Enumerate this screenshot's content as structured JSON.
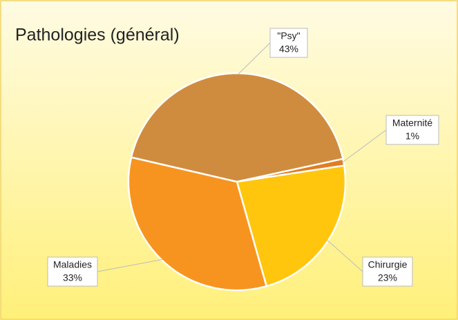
{
  "chart_data": {
    "type": "pie",
    "title": "Pathologies (général)",
    "categories": [
      "\"Psy\"",
      "Maternité",
      "Chirurgie",
      "Maladies"
    ],
    "values": [
      43,
      1,
      23,
      33
    ],
    "value_labels": [
      "43%",
      "1%",
      "23%",
      "33%"
    ],
    "colors": [
      "#d08c3e",
      "#e27d22",
      "#ffc60d",
      "#f7941f"
    ]
  }
}
